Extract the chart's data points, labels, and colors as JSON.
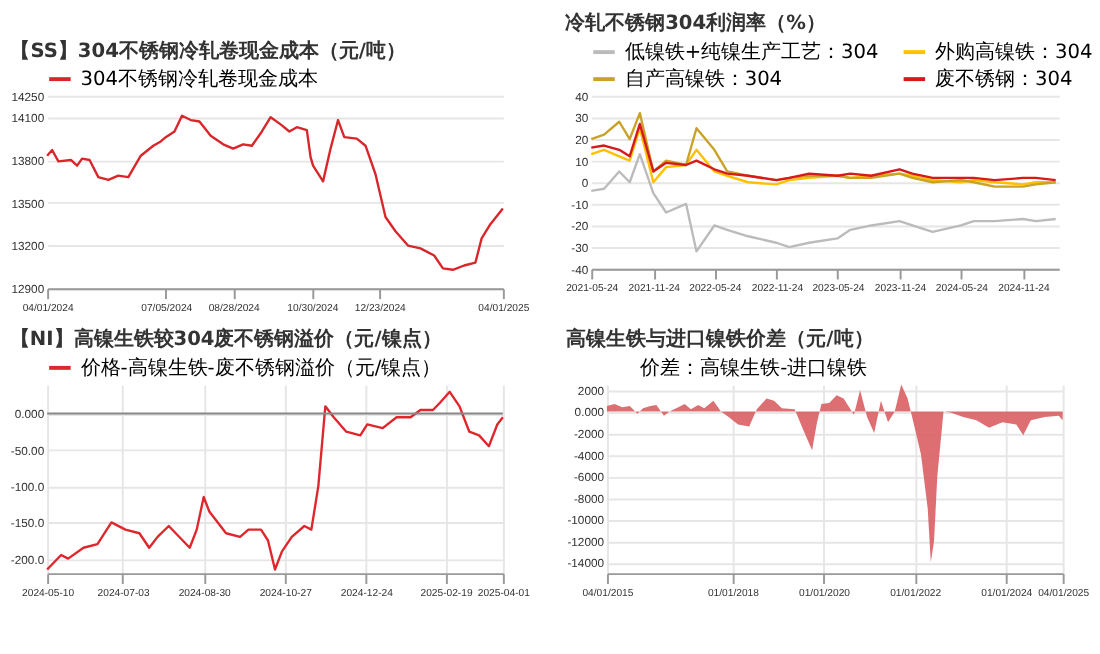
{
  "chart_data": [
    {
      "type": "line",
      "title": "【SS】304不锈钢冷轧卷现金成本（元/吨）",
      "legend": "top",
      "grid": "y",
      "xlim": [
        "2024-04-01",
        "2025-04-01"
      ],
      "xticks": [
        {
          "value": "2024-04-01",
          "label": "04/01/2024"
        },
        {
          "value": "2024-07-05",
          "label": "07/05/2024"
        },
        {
          "value": "2024-08-28",
          "label": "08/28/2024"
        },
        {
          "value": "2024-10-30",
          "label": "10/30/2024"
        },
        {
          "value": "2024-12-23",
          "label": "12/23/2024"
        },
        {
          "value": "2025-04-01",
          "label": "04/01/2025"
        }
      ],
      "ylim": [
        12900,
        14250
      ],
      "yticks": [
        12900,
        13200,
        13500,
        13800,
        14100,
        14250
      ],
      "series": [
        {
          "name": "304不锈钢冷轧卷现金成本",
          "color": "#d9262b",
          "x": [
            "2024-04-01",
            "2024-04-05",
            "2024-04-10",
            "2024-04-20",
            "2024-04-25",
            "2024-04-29",
            "2024-05-05",
            "2024-05-12",
            "2024-05-20",
            "2024-05-28",
            "2024-06-05",
            "2024-06-15",
            "2024-06-25",
            "2024-07-01",
            "2024-07-05",
            "2024-07-12",
            "2024-07-18",
            "2024-07-25",
            "2024-08-01",
            "2024-08-10",
            "2024-08-20",
            "2024-08-28",
            "2024-09-05",
            "2024-09-12",
            "2024-09-20",
            "2024-09-27",
            "2024-10-05",
            "2024-10-12",
            "2024-10-18",
            "2024-10-26",
            "2024-10-29",
            "2024-10-31",
            "2024-11-08",
            "2024-11-14",
            "2024-11-20",
            "2024-11-25",
            "2024-12-05",
            "2024-12-12",
            "2024-12-20",
            "2024-12-28",
            "2025-01-05",
            "2025-01-15",
            "2025-01-25",
            "2025-02-05",
            "2025-02-12",
            "2025-02-20",
            "2025-03-01",
            "2025-03-10",
            "2025-03-15",
            "2025-03-22",
            "2025-04-01"
          ],
          "values": [
            13830,
            13870,
            13790,
            13800,
            13760,
            13810,
            13800,
            13680,
            13660,
            13690,
            13680,
            13830,
            13900,
            13930,
            13960,
            14000,
            14110,
            14080,
            14070,
            13970,
            13910,
            13880,
            13910,
            13900,
            14000,
            14100,
            14050,
            14000,
            14030,
            14010,
            13820,
            13760,
            13650,
            13880,
            14080,
            13960,
            13950,
            13900,
            13700,
            13400,
            13300,
            13200,
            13180,
            13130,
            13040,
            13030,
            13060,
            13080,
            13250,
            13350,
            13460
          ]
        }
      ]
    },
    {
      "type": "line",
      "title": "冷轧不锈钢304利润率（%）",
      "legend": "top",
      "grid": "y",
      "xlim": [
        "2021-05-24",
        "2025-03-10"
      ],
      "xticks": [
        "2021-05-24",
        "2021-11-24",
        "2022-05-24",
        "2022-11-24",
        "2023-05-24",
        "2023-11-24",
        "2024-05-24",
        "2024-11-24"
      ],
      "ylim": [
        -40,
        40
      ],
      "yticks": [
        -40,
        -30,
        -20,
        -10,
        0,
        10,
        20,
        30,
        40
      ],
      "x": [
        "2021-05-24",
        "2021-07-01",
        "2021-08-15",
        "2021-09-15",
        "2021-10-15",
        "2021-11-24",
        "2022-01-01",
        "2022-03-01",
        "2022-04-01",
        "2022-05-24",
        "2022-07-01",
        "2022-09-01",
        "2022-11-24",
        "2023-01-01",
        "2023-03-01",
        "2023-05-24",
        "2023-07-01",
        "2023-09-01",
        "2023-11-24",
        "2024-01-01",
        "2024-03-01",
        "2024-05-24",
        "2024-07-01",
        "2024-09-01",
        "2024-11-24",
        "2025-01-01",
        "2025-03-01"
      ],
      "series": [
        {
          "name": "低镍铁+纯镍生产工艺：304",
          "color": "#bbbbbb",
          "values": [
            -4,
            -3,
            5,
            0,
            13,
            -5,
            -14,
            -10,
            -32,
            -20,
            -22,
            -25,
            -28,
            -30,
            -28,
            -26,
            -22,
            -20,
            -18,
            -20,
            -23,
            -20,
            -18,
            -18,
            -17,
            -18,
            -17
          ]
        },
        {
          "name": "外购高镍铁：304",
          "color": "#ffc000",
          "values": [
            13,
            15,
            12,
            10,
            25,
            0,
            7,
            8,
            15,
            5,
            3,
            0,
            -1,
            1,
            2,
            3,
            2,
            3,
            4,
            3,
            1,
            0,
            1,
            0,
            -1,
            0,
            0
          ]
        },
        {
          "name": "自产高镍铁：304",
          "color": "#c9a227",
          "values": [
            20,
            22,
            28,
            20,
            32,
            5,
            10,
            8,
            25,
            15,
            5,
            3,
            1,
            2,
            3,
            3,
            2,
            2,
            4,
            2,
            0,
            1,
            0,
            -2,
            -2,
            -1,
            0
          ]
        },
        {
          "name": "废不锈钢：304",
          "color": "#d7191c",
          "values": [
            16,
            17,
            15,
            12,
            27,
            5,
            9,
            8,
            10,
            6,
            4,
            3,
            1,
            2,
            4,
            3,
            4,
            3,
            6,
            4,
            2,
            2,
            2,
            1,
            2,
            2,
            1
          ]
        }
      ]
    },
    {
      "type": "line",
      "title": "【NI】高镍生铁较304废不锈钢溢价（元/镍点）",
      "legend": "top",
      "grid": true,
      "xlim": [
        "2024-05-10",
        "2025-04-01"
      ],
      "xticks": [
        "2024-05-10",
        "2024-07-03",
        "2024-08-30",
        "2024-10-27",
        "2024-12-24",
        "2025-02-19",
        "2025-04-01"
      ],
      "ylim": [
        -220,
        40
      ],
      "yticks": [
        {
          "value": -200,
          "label": "-200.0"
        },
        {
          "value": -150,
          "label": "-150.0"
        },
        {
          "value": -100,
          "label": "-100.0"
        },
        {
          "value": -50,
          "label": "-50.00"
        },
        {
          "value": 0,
          "label": "0.000"
        }
      ],
      "ref_lines": [
        {
          "axis": "y",
          "value": 0,
          "color": "#888888"
        }
      ],
      "series": [
        {
          "name": "价格-高镍生铁-废不锈钢溢价（元/镍点）",
          "color": "#e0262d",
          "x": [
            "2024-05-10",
            "2024-05-20",
            "2024-05-25",
            "2024-06-05",
            "2024-06-15",
            "2024-06-25",
            "2024-07-05",
            "2024-07-15",
            "2024-07-22",
            "2024-07-28",
            "2024-08-05",
            "2024-08-15",
            "2024-08-20",
            "2024-08-25",
            "2024-08-30",
            "2024-09-03",
            "2024-09-15",
            "2024-09-25",
            "2024-10-01",
            "2024-10-10",
            "2024-10-15",
            "2024-10-20",
            "2024-10-25",
            "2024-11-01",
            "2024-11-10",
            "2024-11-15",
            "2024-11-20",
            "2024-11-25",
            "2024-12-01",
            "2024-12-10",
            "2024-12-20",
            "2024-12-25",
            "2025-01-05",
            "2025-01-15",
            "2025-01-25",
            "2025-02-01",
            "2025-02-10",
            "2025-02-15",
            "2025-02-22",
            "2025-03-01",
            "2025-03-08",
            "2025-03-15",
            "2025-03-22",
            "2025-03-28",
            "2025-04-01"
          ],
          "values": [
            -215,
            -195,
            -200,
            -185,
            -180,
            -150,
            -160,
            -165,
            -185,
            -170,
            -155,
            -175,
            -185,
            -160,
            -115,
            -135,
            -165,
            -170,
            -160,
            -160,
            -175,
            -215,
            -190,
            -170,
            -155,
            -160,
            -100,
            10,
            -5,
            -25,
            -30,
            -15,
            -20,
            -5,
            -5,
            5,
            5,
            15,
            30,
            10,
            -25,
            -30,
            -45,
            -15,
            -5
          ]
        }
      ]
    },
    {
      "type": "area",
      "title": "高镍生铁与进口镍铁价差（元/吨）",
      "legend": "top",
      "grid": true,
      "xlim": [
        "2015-04-01",
        "2025-04-01"
      ],
      "xticks": [
        {
          "value": "2015-04-01",
          "label": "04/01/2015"
        },
        {
          "value": "2018-01-01",
          "label": "01/01/2018"
        },
        {
          "value": "2020-01-01",
          "label": "01/01/2020"
        },
        {
          "value": "2022-01-01",
          "label": "01/01/2022"
        },
        {
          "value": "2024-01-01",
          "label": "01/01/2024"
        },
        {
          "value": "2025-04-01",
          "label": "04/01/2025"
        }
      ],
      "ylim": [
        -15000,
        2500
      ],
      "yticks": [
        -14000,
        -12000,
        -10000,
        -8000,
        -6000,
        -4000,
        -2000,
        {
          "value": 0,
          "label": "0.000"
        },
        2000
      ],
      "series": [
        {
          "name": "价差：高镍生铁-进口镍铁",
          "color": "#d95f63",
          "x": [
            "2015-04-01",
            "2015-06-01",
            "2015-08-01",
            "2015-10-01",
            "2015-12-01",
            "2016-01-15",
            "2016-03-15",
            "2016-05-01",
            "2016-07-01",
            "2016-08-15",
            "2016-12-15",
            "2017-02-01",
            "2017-04-01",
            "2017-05-20",
            "2017-08-01",
            "2017-10-01",
            "2017-12-01",
            "2018-02-15",
            "2018-05-15",
            "2018-07-15",
            "2018-10-01",
            "2018-12-01",
            "2019-02-01",
            "2019-05-15",
            "2019-07-15",
            "2019-10-01",
            "2019-11-10",
            "2019-12-15",
            "2020-02-15",
            "2020-04-15",
            "2020-06-10",
            "2020-09-01",
            "2020-10-20",
            "2020-12-15",
            "2021-02-10",
            "2021-04-05",
            "2021-06-01",
            "2021-07-25",
            "2021-09-15",
            "2021-11-05",
            "2022-01-01",
            "2022-02-20",
            "2022-04-15",
            "2022-05-10",
            "2022-06-05",
            "2022-07-01",
            "2022-08-20",
            "2022-10-15",
            "2023-01-25",
            "2023-05-10",
            "2023-08-20",
            "2023-12-05",
            "2024-03-25",
            "2024-05-20",
            "2024-07-20",
            "2024-11-10",
            "2025-03-01",
            "2025-04-01"
          ],
          "values": [
            500,
            700,
            400,
            500,
            -200,
            300,
            500,
            600,
            -400,
            0,
            700,
            200,
            600,
            300,
            1000,
            0,
            -500,
            -1200,
            -1400,
            200,
            1200,
            1000,
            300,
            200,
            -1500,
            -3600,
            -1000,
            700,
            800,
            1500,
            1200,
            -300,
            2000,
            -500,
            -2000,
            1000,
            -1000,
            0,
            2500,
            1200,
            -1500,
            -4000,
            -9000,
            -14000,
            -12000,
            -6000,
            0,
            -100,
            -500,
            -800,
            -1500,
            -1000,
            -1200,
            -2200,
            -800,
            -500,
            -400,
            -800
          ]
        }
      ]
    }
  ]
}
